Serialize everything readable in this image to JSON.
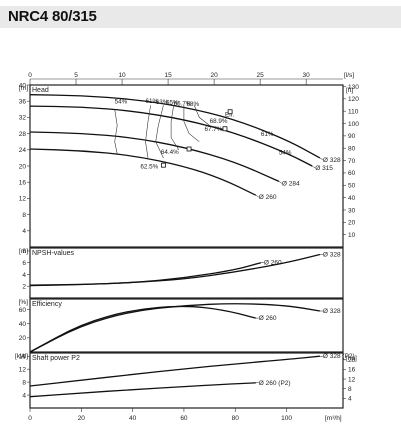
{
  "header": {
    "title": "NRC4 80/315"
  },
  "chart_data": [
    {
      "type": "line",
      "name_label": "Head",
      "top_axis": {
        "label": "[l/s]",
        "ticks": [
          0,
          5,
          10,
          15,
          20,
          25,
          30
        ],
        "range": [
          0,
          34
        ]
      },
      "x_axis": {
        "label": "[m³/h]",
        "ticks": [
          0,
          20,
          40,
          60,
          80,
          100
        ],
        "range": [
          0,
          122
        ]
      },
      "y_left": {
        "label": "[m]",
        "ticks": [
          4,
          8,
          12,
          16,
          20,
          24,
          28,
          32,
          36,
          40
        ],
        "range": [
          0,
          40
        ]
      },
      "y_right": {
        "label": "[ft]",
        "ticks": [
          10,
          20,
          30,
          40,
          50,
          60,
          70,
          80,
          90,
          100,
          110,
          120,
          130
        ],
        "range": [
          0,
          131.2
        ]
      },
      "series": [
        {
          "name": "Ø 328",
          "x": [
            0,
            20,
            40,
            60,
            80,
            100,
            113
          ],
          "y": [
            37.6,
            37.4,
            36.5,
            34.6,
            31.5,
            26.5,
            22
          ]
        },
        {
          "name": "Ø 315",
          "x": [
            0,
            20,
            40,
            60,
            80,
            100,
            110
          ],
          "y": [
            34.8,
            34.6,
            33.6,
            31.5,
            28.2,
            23.2,
            20
          ]
        },
        {
          "name": "Ø 284",
          "x": [
            0,
            20,
            40,
            60,
            80,
            97
          ],
          "y": [
            28.4,
            28.1,
            27,
            24.7,
            21,
            16.2
          ]
        },
        {
          "name": "Ø 260",
          "x": [
            0,
            20,
            40,
            60,
            75,
            88
          ],
          "y": [
            24.2,
            23.8,
            22.6,
            20,
            16.8,
            12.8
          ]
        }
      ],
      "efficiency_labels": [
        "54%",
        "61%",
        "63%",
        "65%",
        "66.7%",
        "68%",
        "68.9%",
        "67.7%",
        "64.4%",
        "62.5%",
        "61%",
        "54%",
        "Eff."
      ]
    },
    {
      "type": "line",
      "name_label": "NPSH-values",
      "y_left": {
        "label": "[m]",
        "ticks": [
          2,
          4,
          6,
          8
        ],
        "range": [
          0,
          8.5
        ]
      },
      "series": [
        {
          "name": "Ø 260",
          "x": [
            0,
            20,
            40,
            60,
            80,
            90
          ],
          "y": [
            2.1,
            2.3,
            2.6,
            3.4,
            4.8,
            6
          ]
        },
        {
          "name": "Ø 328",
          "x": [
            0,
            20,
            40,
            60,
            80,
            100,
            113
          ],
          "y": [
            2.2,
            2.3,
            2.6,
            3.2,
            4.4,
            6,
            7.4
          ]
        }
      ]
    },
    {
      "type": "line",
      "name_label": "Efficiency",
      "y_left": {
        "label": "[%]",
        "ticks": [
          20,
          40,
          60
        ],
        "range": [
          0,
          75
        ]
      },
      "series": [
        {
          "name": "Ø 260",
          "x": [
            0,
            20,
            40,
            60,
            75,
            88
          ],
          "y": [
            0,
            40,
            60,
            66,
            60,
            48
          ]
        },
        {
          "name": "Ø 328",
          "x": [
            0,
            20,
            40,
            60,
            80,
            100,
            113
          ],
          "y": [
            0,
            38,
            58,
            66,
            69,
            66,
            58
          ]
        }
      ]
    },
    {
      "type": "line",
      "name_label": "Shaft power P2",
      "y_left": {
        "label": "[kW]",
        "ticks": [
          4,
          8,
          12,
          16
        ],
        "range": [
          0,
          17
        ]
      },
      "y_right": {
        "label": "[hp]",
        "ticks": [
          4,
          8,
          12,
          16,
          20
        ],
        "range": [
          0,
          22.8
        ]
      },
      "series": [
        {
          "name": "Ø 328 (P2)",
          "x": [
            0,
            20,
            40,
            60,
            80,
            100,
            113
          ],
          "y": [
            6.8,
            8.6,
            10.4,
            12.1,
            13.6,
            15,
            16
          ]
        },
        {
          "name": "Ø 260 (P2)",
          "x": [
            0,
            20,
            40,
            60,
            75,
            88
          ],
          "y": [
            3.5,
            4.6,
            5.7,
            6.6,
            7.3,
            7.8
          ]
        }
      ]
    }
  ]
}
